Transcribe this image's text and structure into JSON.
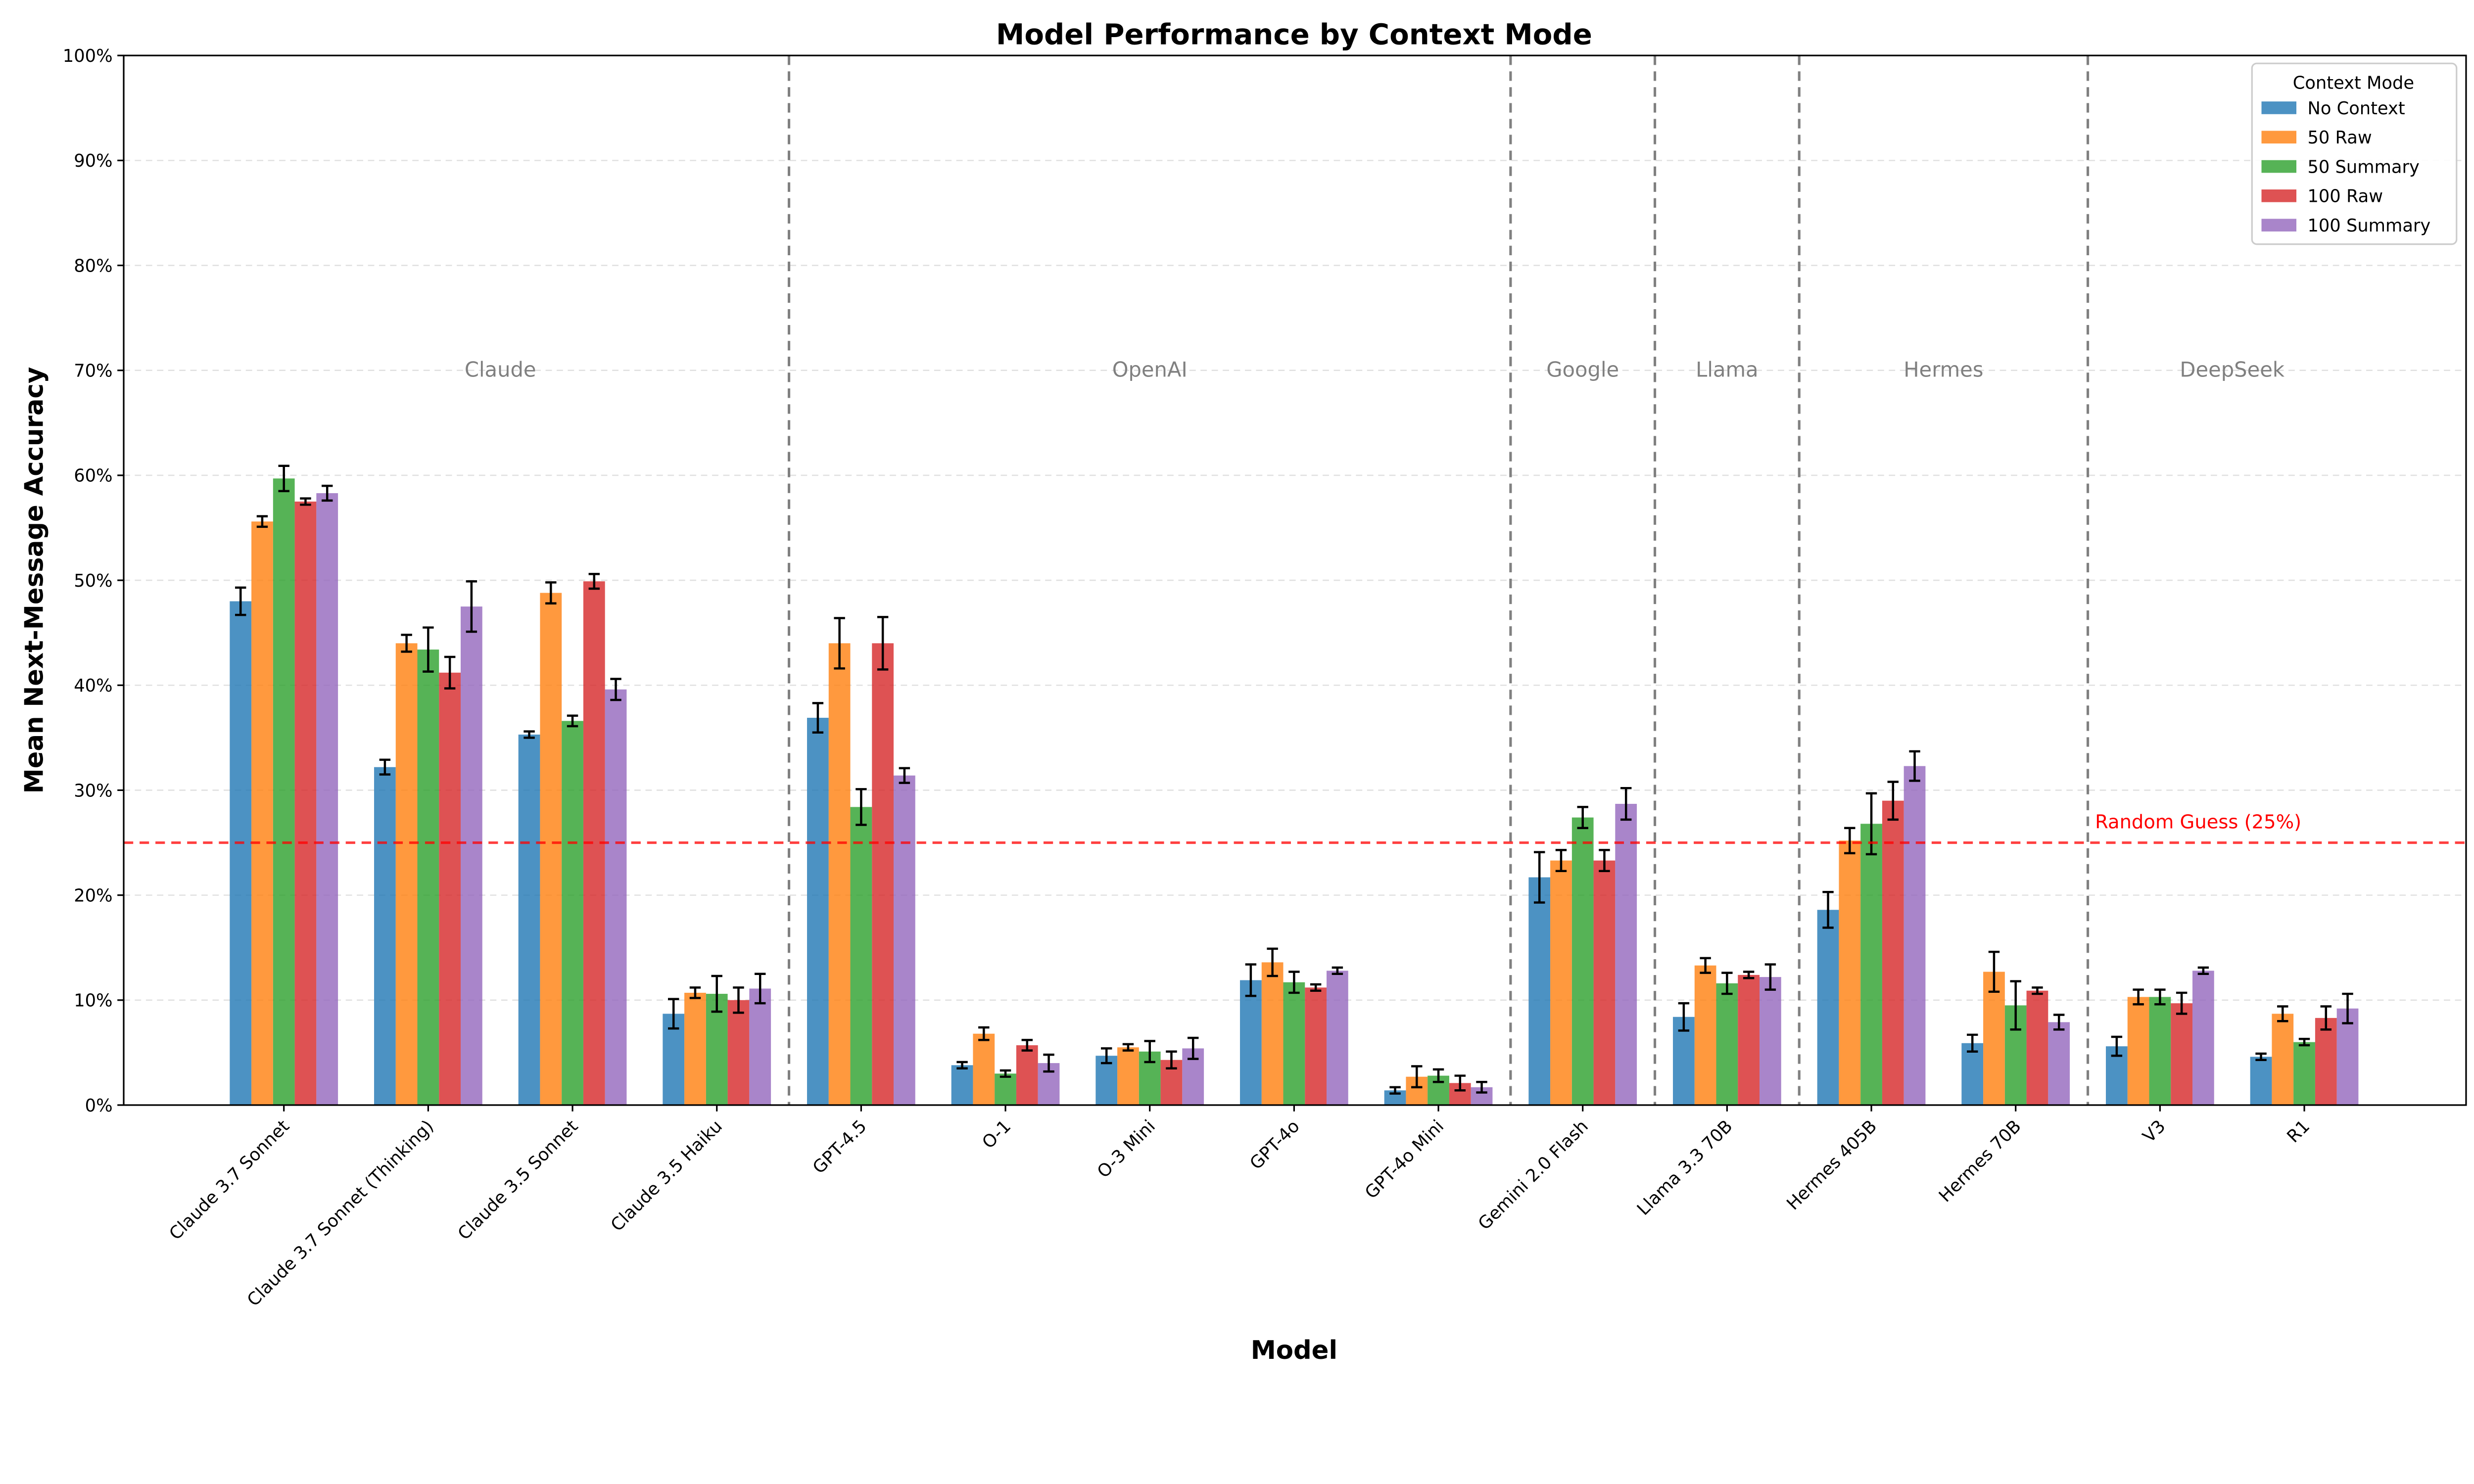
{
  "chart_data": {
    "type": "bar",
    "title": "Model Performance by Context Mode",
    "xlabel": "Model",
    "ylabel": "Mean Next-Message Accuracy",
    "ylim": [
      0,
      100
    ],
    "yticks": [
      "0%",
      "10%",
      "20%",
      "30%",
      "40%",
      "50%",
      "60%",
      "70%",
      "80%",
      "90%",
      "100%"
    ],
    "grid": "horizontal dashed",
    "categories": [
      "Claude 3.7 Sonnet",
      "Claude 3.7 Sonnet (Thinking)",
      "Claude 3.5 Sonnet",
      "Claude 3.5 Haiku",
      "GPT-4.5",
      "O-1",
      "O-3 Mini",
      "GPT-4o",
      "GPT-4o Mini",
      "Gemini 2.0 Flash",
      "Llama 3.3 70B",
      "Hermes 405B",
      "Hermes 70B",
      "V3",
      "R1"
    ],
    "groups": [
      {
        "label": "Claude",
        "first": 0,
        "last": 3
      },
      {
        "label": "OpenAI",
        "first": 4,
        "last": 8
      },
      {
        "label": "Google",
        "first": 9,
        "last": 9
      },
      {
        "label": "Llama",
        "first": 10,
        "last": 10
      },
      {
        "label": "Hermes",
        "first": 11,
        "last": 12
      },
      {
        "label": "DeepSeek",
        "first": 13,
        "last": 14
      }
    ],
    "legend": {
      "title": "Context Mode",
      "placement": "top-right"
    },
    "series": [
      {
        "name": "No Context",
        "color": "#1f77b4",
        "values": [
          48.0,
          32.2,
          35.3,
          8.7,
          36.9,
          3.8,
          4.7,
          11.9,
          1.4,
          21.7,
          8.4,
          18.6,
          5.9,
          5.6,
          4.6
        ],
        "errors": [
          1.3,
          0.7,
          0.3,
          1.4,
          1.4,
          0.3,
          0.7,
          1.5,
          0.3,
          2.4,
          1.3,
          1.7,
          0.8,
          0.9,
          0.3
        ]
      },
      {
        "name": "50 Raw",
        "color": "#ff7f0e",
        "values": [
          55.6,
          44.0,
          48.8,
          10.7,
          44.0,
          6.8,
          5.5,
          13.6,
          2.7,
          23.3,
          13.3,
          25.2,
          12.7,
          10.3,
          8.7
        ],
        "errors": [
          0.5,
          0.8,
          1.0,
          0.5,
          2.4,
          0.6,
          0.3,
          1.3,
          1.0,
          1.0,
          0.7,
          1.2,
          1.9,
          0.7,
          0.7
        ]
      },
      {
        "name": "50 Summary",
        "color": "#2ca02c",
        "values": [
          59.7,
          43.4,
          36.6,
          10.6,
          28.4,
          3.0,
          5.1,
          11.7,
          2.8,
          27.4,
          11.6,
          26.8,
          9.5,
          10.3,
          6.0
        ],
        "errors": [
          1.2,
          2.1,
          0.5,
          1.7,
          1.7,
          0.3,
          1.0,
          1.0,
          0.6,
          1.0,
          1.0,
          2.9,
          2.3,
          0.7,
          0.3
        ]
      },
      {
        "name": "100 Raw",
        "color": "#d62728",
        "values": [
          57.5,
          41.2,
          49.9,
          10.0,
          44.0,
          5.7,
          4.3,
          11.2,
          2.1,
          23.3,
          12.4,
          29.0,
          10.9,
          9.7,
          8.3
        ],
        "errors": [
          0.3,
          1.5,
          0.7,
          1.2,
          2.5,
          0.5,
          0.8,
          0.3,
          0.7,
          1.0,
          0.3,
          1.8,
          0.3,
          1.0,
          1.1
        ]
      },
      {
        "name": "100 Summary",
        "color": "#9467bd",
        "values": [
          58.3,
          47.5,
          39.6,
          11.1,
          31.4,
          4.0,
          5.4,
          12.8,
          1.7,
          28.7,
          12.2,
          32.3,
          7.9,
          12.8,
          9.2
        ],
        "errors": [
          0.7,
          2.4,
          1.0,
          1.4,
          0.7,
          0.8,
          1.0,
          0.3,
          0.5,
          1.5,
          1.2,
          1.4,
          0.7,
          0.3,
          1.4
        ]
      }
    ],
    "reference_line": {
      "value": 25,
      "label": "Random Guess (25%)",
      "color": "#ff0000"
    }
  }
}
